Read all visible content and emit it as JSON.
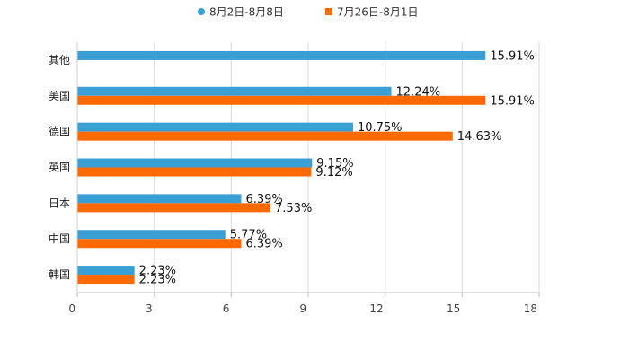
{
  "chart_data": {
    "type": "bar",
    "orientation": "horizontal",
    "title": "",
    "xlabel": "",
    "ylabel": "",
    "categories": [
      "其他",
      "美国",
      "德国",
      "英国",
      "日本",
      "中国",
      "韩国"
    ],
    "series": [
      {
        "name": "8月2日-8月8日",
        "color": "#3a9fd5",
        "values": [
          15.91,
          12.24,
          10.75,
          9.15,
          6.39,
          5.77,
          2.23
        ]
      },
      {
        "name": "7月26日-8月1日",
        "color": "#ff6a00",
        "values": [
          null,
          15.91,
          14.63,
          9.12,
          7.53,
          6.39,
          2.23
        ]
      }
    ],
    "data_labels": [
      [
        "15.91%",
        "12.24%",
        "10.75%",
        "9.15%",
        "6.39%",
        "5.77%",
        "2.23%"
      ],
      [
        null,
        "15.91%",
        "14.63%",
        "9.12%",
        "7.53%",
        "6.39%",
        "2.23%"
      ]
    ],
    "xlim": [
      0,
      18
    ],
    "xticks": [
      0,
      3,
      6,
      9,
      12,
      15,
      18
    ],
    "xtick_labels": [
      "0",
      "3",
      "6",
      "9",
      "12",
      "15",
      "18"
    ],
    "grid": true,
    "legend_position": "top-center"
  }
}
